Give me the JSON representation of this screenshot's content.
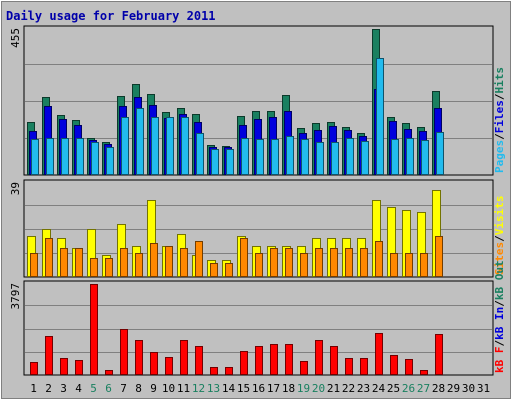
{
  "chart_data": {
    "type": "bar",
    "title": "Daily usage for February 2011",
    "categories": [
      "1",
      "2",
      "3",
      "4",
      "5",
      "6",
      "7",
      "8",
      "9",
      "10",
      "11",
      "12",
      "13",
      "14",
      "15",
      "16",
      "17",
      "18",
      "19",
      "20",
      "21",
      "22",
      "23",
      "24",
      "25",
      "26",
      "27",
      "28",
      "29",
      "30",
      "31"
    ],
    "weekend_days": [
      5,
      6,
      12,
      13,
      19,
      20,
      26,
      27
    ],
    "panels": [
      {
        "id": "hits",
        "ymax_label": "455",
        "ymax": 455,
        "legend": [
          "Pages",
          "Files",
          "Hits"
        ],
        "series": [
          {
            "name": "Hits",
            "color": "#1a8060",
            "values": [
              165,
              244,
              188,
              170,
              115,
              102,
              247,
              285,
              252,
              196,
              210,
              190,
              95,
              91,
              183,
              198,
              198,
              249,
              147,
              162,
              165,
              150,
              130,
              455,
              180,
              162,
              150,
              261,
              0,
              0,
              0
            ]
          },
          {
            "name": "Files",
            "color": "#0000dd",
            "values": [
              137,
              216,
              175,
              156,
              110,
              96,
              216,
              244,
              218,
              178,
              190,
              165,
              86,
              86,
              156,
              176,
              182,
              200,
              130,
              141,
              153,
              139,
              120,
              268,
              168,
              142,
              136,
              210,
              0,
              0,
              0
            ]
          },
          {
            "name": "Pages",
            "color": "#22bbee",
            "values": [
              112,
              116,
              114,
              114,
              103,
              87,
              180,
              210,
              180,
              180,
              180,
              130,
              82,
              82,
              114,
              112,
              112,
              120,
              112,
              102,
              102,
              116,
              107,
              364,
              112,
              116,
              108,
              134,
              0,
              0,
              0
            ]
          }
        ]
      },
      {
        "id": "visits",
        "ymax_label": "39",
        "ymax": 39,
        "legend": [
          "Sites",
          "Visits"
        ],
        "series": [
          {
            "name": "Visits",
            "color": "#ffff00",
            "values": [
              17,
              20,
              16,
              12,
              20,
              9,
              22,
              13,
              32,
              13,
              18,
              9,
              7,
              7,
              17,
              13,
              13,
              13,
              13,
              16,
              16,
              16,
              16,
              32,
              29,
              28,
              27,
              36,
              0,
              0,
              0
            ]
          },
          {
            "name": "Sites",
            "color": "#ff8800",
            "values": [
              10,
              16,
              12,
              12,
              8,
              8,
              12,
              10,
              14,
              13,
              12,
              15,
              6,
              6,
              16,
              10,
              12,
              12,
              10,
              12,
              12,
              12,
              12,
              15,
              10,
              10,
              10,
              17,
              0,
              0,
              0
            ]
          }
        ]
      },
      {
        "id": "kbytes",
        "ymax_label": "3797",
        "ymax": 3797,
        "legend": [
          "kB F",
          "kB In",
          "kB Out"
        ],
        "series": [
          {
            "name": "kB F",
            "color": "#ff0000",
            "values": [
              562,
              1642,
              704,
              620,
              3797,
              226,
              1920,
              1450,
              951,
              750,
              1450,
              1195,
              318,
              330,
              1000,
              1220,
              1285,
              1285,
              605,
              1470,
              1195,
              705,
              690,
              1735,
              830,
              655,
              210,
              1715,
              0,
              0,
              0
            ]
          }
        ]
      }
    ]
  }
}
